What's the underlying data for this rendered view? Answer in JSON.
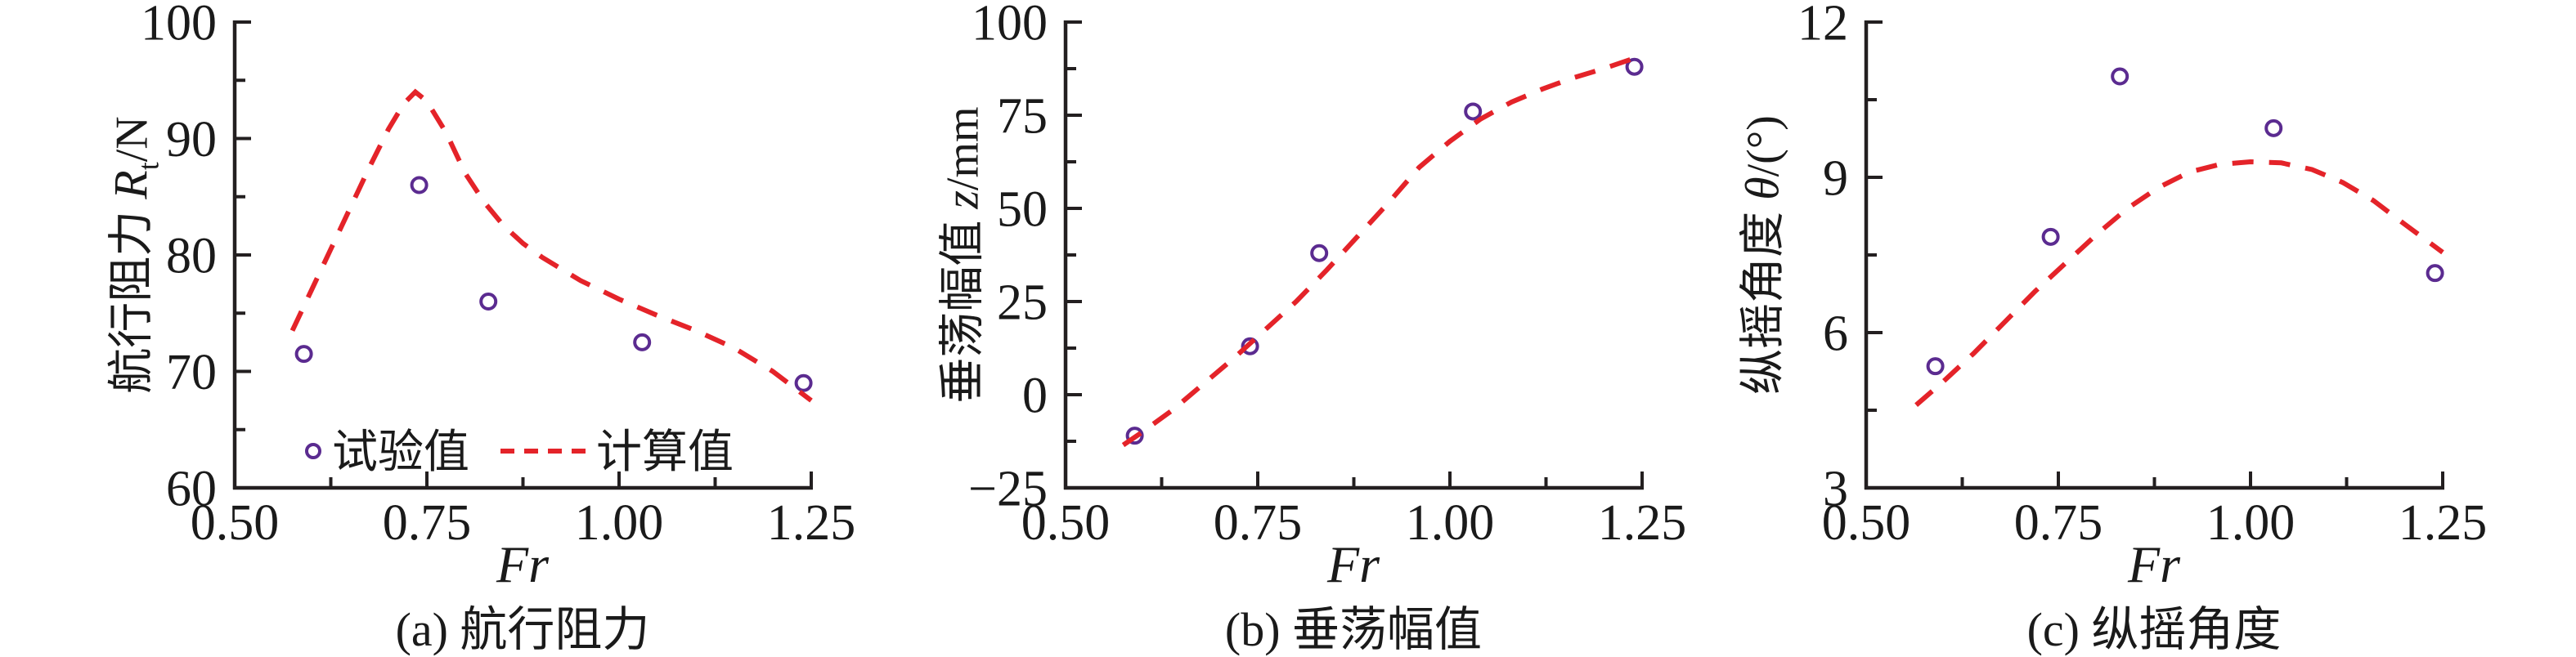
{
  "figure": {
    "background": "#ffffff",
    "x_axis_label": "Fr",
    "legend": {
      "experiment_label": "试验值",
      "computed_label": "计算值"
    },
    "colors": {
      "experiment_marker": "#5B2B90",
      "computed_line": "#E42329",
      "axis": "#231F20",
      "text": "#1a1a1a"
    }
  },
  "chart_data": [
    {
      "id": "a",
      "type": "scatter",
      "caption": "(a) 航行阻力",
      "xlabel": "Fr",
      "ylabel": {
        "prefix": "航行阻力",
        "symbol": "R",
        "subscript": "t",
        "suffix": "/N"
      },
      "xlim": [
        0.5,
        1.25
      ],
      "ylim": [
        60,
        100
      ],
      "xtick_values": [
        0.5,
        0.75,
        1.0,
        1.25
      ],
      "xtick_labels": [
        "0.50",
        "0.75",
        "1.00",
        "1.25"
      ],
      "x_minor_values": [
        0.625,
        0.875,
        1.125
      ],
      "ytick_values": [
        60,
        70,
        80,
        90,
        100
      ],
      "ytick_labels": [
        "60",
        "70",
        "80",
        "90",
        "100"
      ],
      "y_minor_values": [
        65,
        75,
        85,
        95
      ],
      "show_legend": true,
      "series": [
        {
          "name": "试验值",
          "type": "scatter",
          "x": [
            0.59,
            0.74,
            0.83,
            1.03,
            1.24
          ],
          "y": [
            71.5,
            86,
            76,
            72.5,
            69
          ]
        },
        {
          "name": "计算值",
          "type": "dashed-line",
          "x": [
            0.575,
            0.6,
            0.625,
            0.65,
            0.675,
            0.7,
            0.72,
            0.735,
            0.75,
            0.775,
            0.8,
            0.825,
            0.85,
            0.875,
            0.9,
            0.95,
            1.0,
            1.05,
            1.1,
            1.15,
            1.2,
            1.25
          ],
          "y": [
            73.5,
            77,
            80.5,
            84,
            87.5,
            90.8,
            93,
            94,
            93.2,
            90.5,
            87,
            84.5,
            82.5,
            81,
            79.8,
            77.8,
            76.2,
            74.8,
            73.5,
            72,
            70,
            67.5
          ]
        }
      ]
    },
    {
      "id": "b",
      "type": "scatter",
      "caption": "(b) 垂荡幅值",
      "xlabel": "Fr",
      "ylabel": {
        "prefix": "垂荡幅值",
        "symbol": "z",
        "subscript": "",
        "suffix": "/mm"
      },
      "xlim": [
        0.5,
        1.25
      ],
      "ylim": [
        -25,
        100
      ],
      "xtick_values": [
        0.5,
        0.75,
        1.0,
        1.25
      ],
      "xtick_labels": [
        "0.50",
        "0.75",
        "1.00",
        "1.25"
      ],
      "x_minor_values": [
        0.625,
        0.875,
        1.125
      ],
      "ytick_values": [
        -25,
        0,
        25,
        50,
        75,
        100
      ],
      "ytick_labels": [
        "−25",
        "0",
        "25",
        "50",
        "75",
        "100"
      ],
      "y_minor_values": [
        -12.5,
        12.5,
        37.5,
        62.5,
        87.5
      ],
      "show_legend": false,
      "series": [
        {
          "name": "试验值",
          "type": "scatter",
          "x": [
            0.59,
            0.74,
            0.83,
            1.03,
            1.24
          ],
          "y": [
            -11,
            13,
            38,
            76,
            88
          ]
        },
        {
          "name": "计算值",
          "type": "dashed-line",
          "x": [
            0.575,
            0.6,
            0.64,
            0.68,
            0.72,
            0.76,
            0.8,
            0.84,
            0.88,
            0.92,
            0.96,
            1.0,
            1.04,
            1.08,
            1.12,
            1.16,
            1.2,
            1.25
          ],
          "y": [
            -13.5,
            -10,
            -4,
            3,
            10,
            17.5,
            25,
            33.5,
            42.5,
            51.5,
            61,
            68,
            74,
            78.5,
            82,
            85,
            87.5,
            91
          ]
        }
      ]
    },
    {
      "id": "c",
      "type": "scatter",
      "caption": "(c) 纵摇角度",
      "xlabel": "Fr",
      "ylabel": {
        "prefix": "纵摇角度",
        "symbol": "θ",
        "subscript": "",
        "suffix": "/(°)"
      },
      "xlim": [
        0.5,
        1.25
      ],
      "ylim": [
        3,
        12
      ],
      "xtick_values": [
        0.5,
        0.75,
        1.0,
        1.25
      ],
      "xtick_labels": [
        "0.50",
        "0.75",
        "1.00",
        "1.25"
      ],
      "x_minor_values": [
        0.625,
        0.875,
        1.125
      ],
      "ytick_values": [
        3,
        6,
        9,
        12
      ],
      "ytick_labels": [
        "3",
        "6",
        "9",
        "12"
      ],
      "y_minor_values": [
        4.5,
        7.5,
        10.5
      ],
      "show_legend": false,
      "series": [
        {
          "name": "试验值",
          "type": "scatter",
          "x": [
            0.59,
            0.74,
            0.83,
            1.03,
            1.24
          ],
          "y": [
            5.35,
            7.85,
            10.95,
            9.95,
            7.15
          ]
        },
        {
          "name": "计算值",
          "type": "dashed-line",
          "x": [
            0.565,
            0.6,
            0.64,
            0.68,
            0.72,
            0.76,
            0.8,
            0.84,
            0.88,
            0.92,
            0.96,
            1.0,
            1.04,
            1.08,
            1.12,
            1.16,
            1.2,
            1.25
          ],
          "y": [
            4.6,
            5.05,
            5.6,
            6.2,
            6.8,
            7.35,
            7.9,
            8.4,
            8.8,
            9.1,
            9.25,
            9.3,
            9.28,
            9.15,
            8.9,
            8.55,
            8.1,
            7.55
          ]
        }
      ]
    }
  ]
}
